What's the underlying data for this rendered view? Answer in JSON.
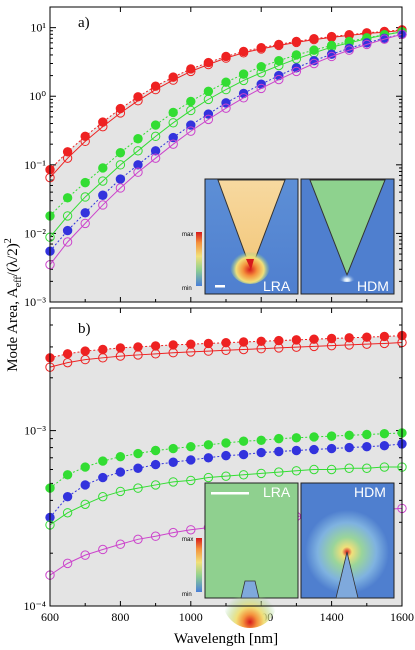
{
  "chart_data": [
    {
      "type": "scatter",
      "panel_label": "a)",
      "x_axis": {
        "ticks": [
          600,
          800,
          1000,
          1200,
          1400,
          1600
        ],
        "tick_labels_shown": false
      },
      "y_axis": {
        "scale": "log",
        "ylim": [
          0.001,
          20
        ],
        "tick_labels": [
          "10⁻³",
          "10⁻²",
          "10⁻¹",
          "10⁰",
          "10¹"
        ],
        "tick_values": [
          0.001,
          0.01,
          0.1,
          1,
          10
        ]
      },
      "x": [
        600,
        650,
        700,
        750,
        800,
        850,
        900,
        950,
        1000,
        1050,
        1100,
        1150,
        1200,
        1250,
        1300,
        1350,
        1400,
        1450,
        1500,
        1550,
        1600
      ],
      "series": [
        {
          "color": "#ee2222",
          "marker": "filled",
          "dashed": true,
          "values": [
            0.085,
            0.155,
            0.26,
            0.42,
            0.66,
            0.98,
            1.4,
            1.9,
            2.5,
            3.1,
            3.8,
            4.5,
            5.1,
            5.7,
            6.3,
            6.9,
            7.4,
            7.9,
            8.4,
            8.8,
            9.3
          ]
        },
        {
          "color": "#ee2222",
          "marker": "open",
          "dashed": false,
          "values": [
            0.065,
            0.125,
            0.22,
            0.36,
            0.57,
            0.86,
            1.25,
            1.72,
            2.3,
            2.9,
            3.6,
            4.3,
            4.9,
            5.5,
            6.1,
            6.7,
            7.2,
            7.7,
            8.2,
            8.6,
            9.1
          ]
        },
        {
          "color": "#33dd33",
          "marker": "filled",
          "dashed": true,
          "values": [
            0.018,
            0.033,
            0.055,
            0.09,
            0.15,
            0.24,
            0.38,
            0.58,
            0.84,
            1.18,
            1.6,
            2.1,
            2.7,
            3.3,
            4.0,
            4.7,
            5.5,
            6.3,
            7.1,
            7.9,
            8.7
          ]
        },
        {
          "color": "#33dd33",
          "marker": "open",
          "dashed": false,
          "values": [
            0.0088,
            0.018,
            0.034,
            0.058,
            0.1,
            0.16,
            0.26,
            0.41,
            0.62,
            0.9,
            1.25,
            1.7,
            2.2,
            2.8,
            3.5,
            4.3,
            5.2,
            6.0,
            6.9,
            7.8,
            8.7
          ]
        },
        {
          "color": "#3333dd",
          "marker": "filled",
          "dashed": true,
          "values": [
            0.0055,
            0.011,
            0.02,
            0.036,
            0.062,
            0.1,
            0.16,
            0.25,
            0.38,
            0.55,
            0.8,
            1.1,
            1.5,
            2.0,
            2.6,
            3.3,
            4.1,
            5.0,
            6.0,
            7.0,
            8.0
          ]
        },
        {
          "color": "#cc44cc",
          "marker": "open",
          "dashed": false,
          "values": [
            0.0035,
            0.0075,
            0.014,
            0.026,
            0.046,
            0.078,
            0.125,
            0.2,
            0.31,
            0.46,
            0.67,
            0.95,
            1.3,
            1.75,
            2.3,
            3.0,
            3.8,
            4.7,
            5.7,
            6.8,
            8.0
          ]
        }
      ],
      "insets": [
        {
          "label": "LRA",
          "colorbar": {
            "max_label": "max",
            "min_label": "min"
          },
          "scalebar": true
        },
        {
          "label": "HDM"
        }
      ]
    },
    {
      "type": "scatter",
      "panel_label": "b)",
      "x_axis": {
        "ticks": [
          600,
          800,
          1000,
          1200,
          1400,
          1600
        ],
        "tick_labels": [
          "600",
          "800",
          "1000",
          "1200",
          "1400",
          "1600"
        ]
      },
      "y_axis": {
        "scale": "log",
        "ylim": [
          0.0001,
          0.005
        ],
        "tick_labels": [
          "10⁻⁴",
          "10⁻³"
        ],
        "tick_values": [
          0.0001,
          0.001
        ]
      },
      "x": [
        600,
        650,
        700,
        750,
        800,
        850,
        900,
        950,
        1000,
        1050,
        1100,
        1150,
        1200,
        1250,
        1300,
        1350,
        1400,
        1450,
        1500,
        1550,
        1600
      ],
      "series": [
        {
          "color": "#ee2222",
          "marker": "filled",
          "dashed": true,
          "values": [
            0.0026,
            0.00274,
            0.00284,
            0.0029,
            0.00296,
            0.003,
            0.00304,
            0.00308,
            0.00311,
            0.00314,
            0.00317,
            0.0032,
            0.00323,
            0.00326,
            0.00329,
            0.00332,
            0.00335,
            0.00338,
            0.00341,
            0.00344,
            0.00348
          ]
        },
        {
          "color": "#ee2222",
          "marker": "open",
          "dashed": false,
          "values": [
            0.0023,
            0.00244,
            0.00254,
            0.0026,
            0.00266,
            0.0027,
            0.00274,
            0.00278,
            0.00281,
            0.00284,
            0.00287,
            0.0029,
            0.00293,
            0.00296,
            0.00299,
            0.00302,
            0.00305,
            0.00308,
            0.00311,
            0.00314,
            0.00318
          ]
        },
        {
          "color": "#33dd33",
          "marker": "filled",
          "dashed": true,
          "values": [
            0.00047,
            0.00056,
            0.00062,
            0.00067,
            0.00071,
            0.00074,
            0.00077,
            0.00079,
            0.00081,
            0.00083,
            0.00085,
            0.00087,
            0.00088,
            0.0009,
            0.00091,
            0.00092,
            0.00093,
            0.00094,
            0.00095,
            0.00096,
            0.00097
          ]
        },
        {
          "color": "#3333dd",
          "marker": "filled",
          "dashed": true,
          "values": [
            0.00032,
            0.00042,
            0.00049,
            0.00054,
            0.00058,
            0.00061,
            0.00064,
            0.00066,
            0.00068,
            0.0007,
            0.00072,
            0.00073,
            0.00075,
            0.00076,
            0.00077,
            0.00078,
            0.00079,
            0.0008,
            0.00081,
            0.00082,
            0.00084
          ]
        },
        {
          "color": "#33dd33",
          "marker": "open",
          "dashed": false,
          "values": [
            0.00029,
            0.00034,
            0.00038,
            0.00042,
            0.00045,
            0.00047,
            0.00049,
            0.00051,
            0.00052,
            0.00054,
            0.00055,
            0.00056,
            0.00057,
            0.00058,
            0.00059,
            0.0006,
            0.0006,
            0.00061,
            0.00061,
            0.00062,
            0.00062
          ]
        },
        {
          "color": "#cc44cc",
          "marker": "open",
          "dashed": false,
          "values": [
            0.00015,
            0.000175,
            0.000195,
            0.00021,
            0.000225,
            0.00024,
            0.00025,
            0.000262,
            0.000272,
            0.00028,
            0.00029,
            0.0003,
            0.000308,
            0.000316,
            0.000324,
            0.00033,
            0.000337,
            0.000343,
            0.000349,
            0.000355,
            0.00036
          ]
        }
      ],
      "insets": [
        {
          "label": "LRA",
          "colorbar": {
            "max_label": "max",
            "min_label": "min"
          },
          "scalebar": true
        },
        {
          "label": "HDM"
        }
      ]
    }
  ],
  "axes": {
    "xlabel": "Wavelength [nm]",
    "ylabel": "Mode Area, A",
    "ylabel_sub": "eff",
    "ylabel_tail": "/(λ/2)",
    "ylabel_sup": "2"
  },
  "colors": {
    "panel_background": "#e4e4e4"
  }
}
